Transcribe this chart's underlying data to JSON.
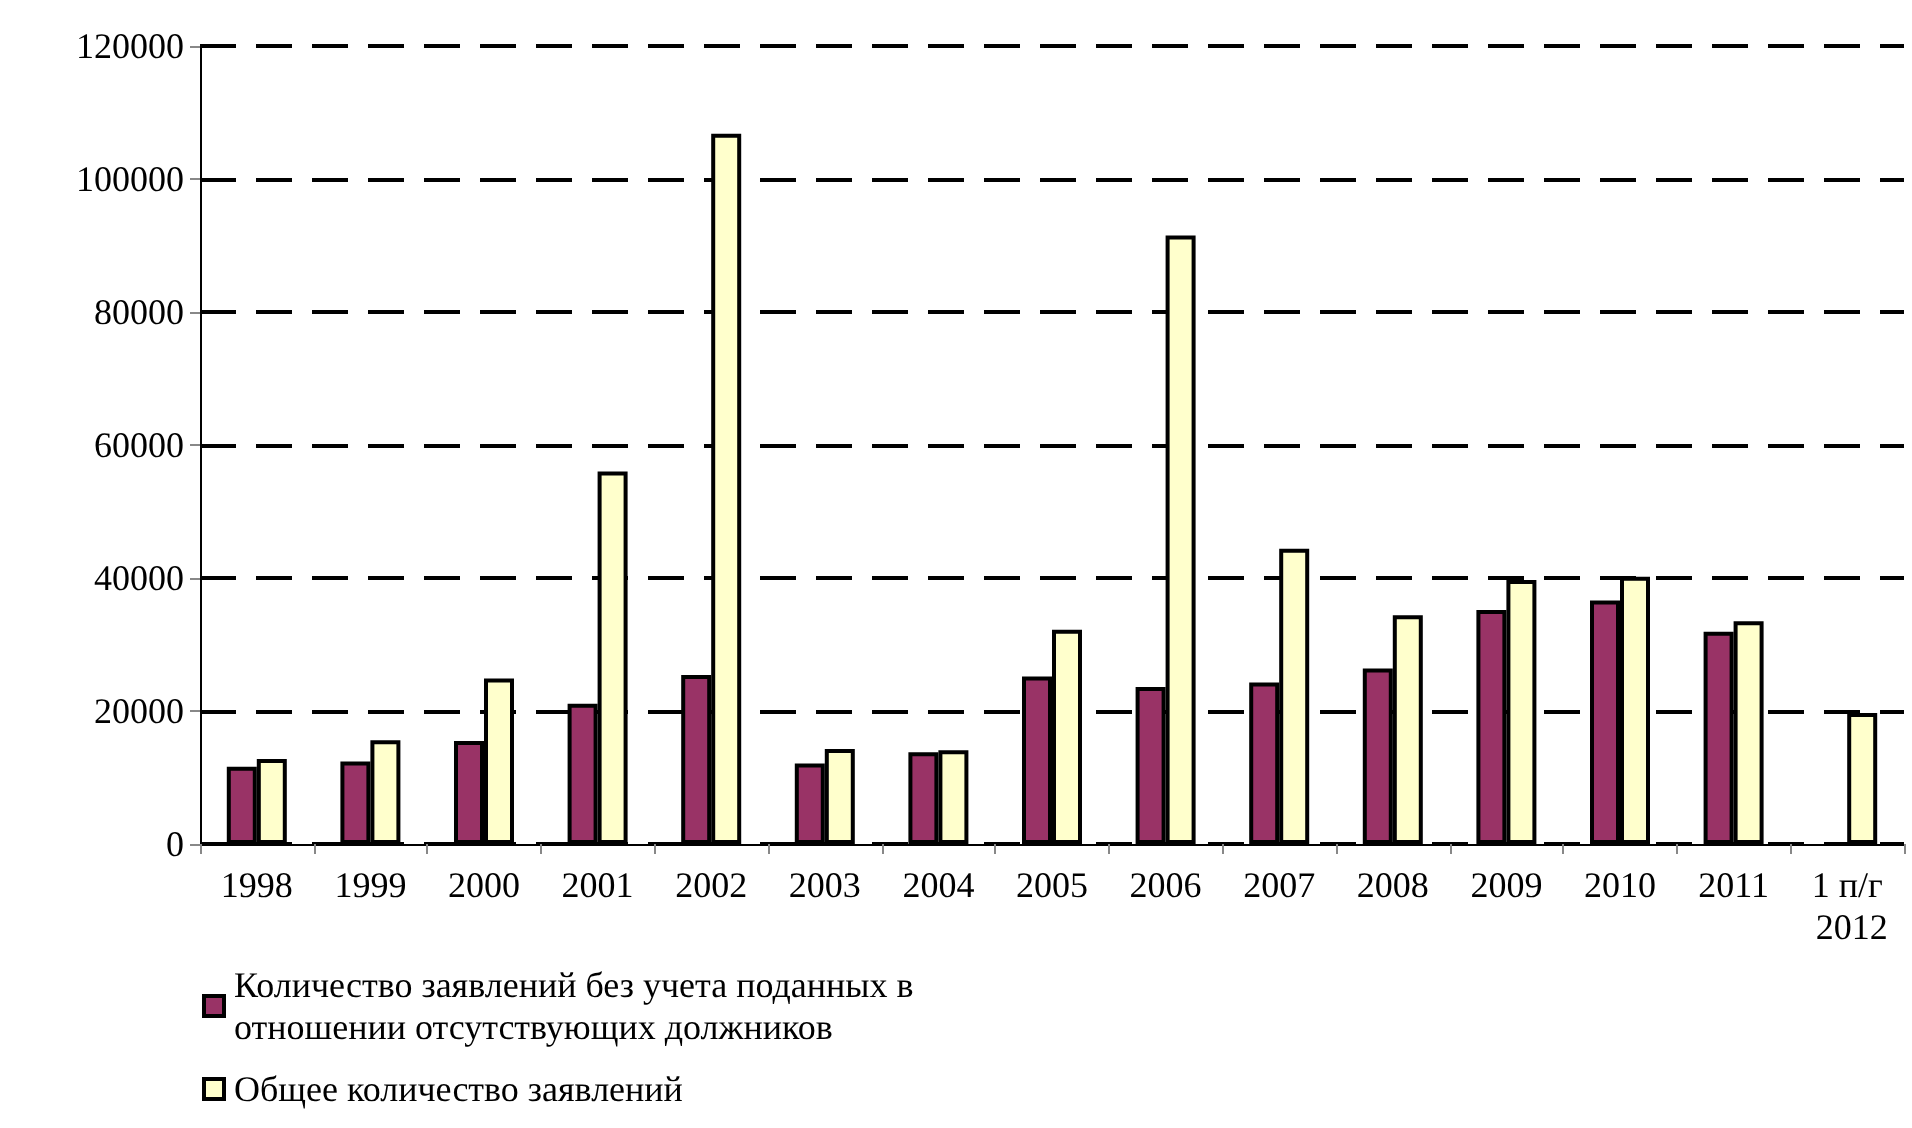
{
  "chart_data": {
    "type": "bar",
    "categories": [
      "1998",
      "1999",
      "2000",
      "2001",
      "2002",
      "2003",
      "2004",
      "2005",
      "2006",
      "2007",
      "2008",
      "2009",
      "2010",
      "2011",
      "1 п/г 2012"
    ],
    "series": [
      {
        "name": "Количество заявлений без учета поданных в отношении отсутствующих должников",
        "color": "#993366",
        "values": [
          11600,
          12400,
          15500,
          21100,
          25400,
          12100,
          13800,
          25200,
          23600,
          24300,
          26400,
          35200,
          36600,
          31900,
          null
        ]
      },
      {
        "name": "Общее количество заявлений",
        "color": "#ffffcc",
        "values": [
          12800,
          15600,
          24900,
          56000,
          106800,
          14300,
          14100,
          32200,
          91500,
          44400,
          34400,
          39700,
          40200,
          33500,
          19700
        ]
      }
    ],
    "ylim": [
      0,
      120000
    ],
    "yticks": [
      0,
      20000,
      40000,
      60000,
      80000,
      100000,
      120000
    ],
    "grid": "y",
    "legend": "bottom left"
  }
}
